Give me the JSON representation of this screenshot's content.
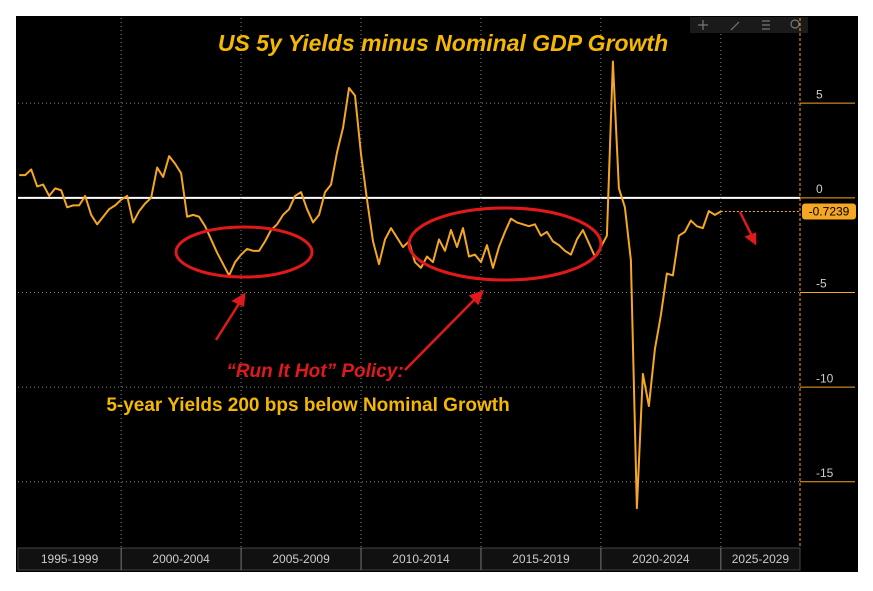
{
  "chart_data": {
    "type": "line",
    "title": "US 5y Yields minus Nominal GDP Growth",
    "annotations": [
      "“Run It Hot” Policy:",
      "5-year Yields 200 bps below Nominal Growth"
    ],
    "x": [
      1995.75,
      1996.0,
      1996.25,
      1996.5,
      1996.75,
      1997.0,
      1997.25,
      1997.5,
      1997.75,
      1998.0,
      1998.25,
      1998.5,
      1998.75,
      1999.0,
      1999.25,
      1999.5,
      1999.75,
      2000.0,
      2000.25,
      2000.5,
      2000.75,
      2001.0,
      2001.25,
      2001.5,
      2001.75,
      2002.0,
      2002.25,
      2002.5,
      2002.75,
      2003.0,
      2003.25,
      2003.5,
      2003.75,
      2004.0,
      2004.25,
      2004.5,
      2004.75,
      2005.0,
      2005.25,
      2005.5,
      2005.75,
      2006.0,
      2006.25,
      2006.5,
      2006.75,
      2007.0,
      2007.25,
      2007.5,
      2007.75,
      2008.0,
      2008.25,
      2008.5,
      2008.75,
      2009.0,
      2009.25,
      2009.5,
      2009.75,
      2010.0,
      2010.25,
      2010.5,
      2010.75,
      2011.0,
      2011.25,
      2011.5,
      2011.75,
      2012.0,
      2012.25,
      2012.5,
      2012.75,
      2013.0,
      2013.25,
      2013.5,
      2013.75,
      2014.0,
      2014.25,
      2014.5,
      2014.75,
      2015.0,
      2015.25,
      2015.5,
      2015.75,
      2016.0,
      2016.25,
      2016.5,
      2016.75,
      2017.0,
      2017.25,
      2017.5,
      2017.75,
      2018.0,
      2018.25,
      2018.5,
      2018.75,
      2019.0,
      2019.25,
      2019.5,
      2019.75,
      2020.0,
      2020.25,
      2020.5,
      2020.75,
      2021.0,
      2021.25,
      2021.5,
      2021.75,
      2022.0,
      2022.25,
      2022.5,
      2022.75,
      2023.0,
      2023.25,
      2023.5,
      2023.75,
      2024.0,
      2024.25,
      2024.5,
      2024.75,
      2025.0
    ],
    "series": [
      {
        "name": "US 5y Yields minus Nominal GDP Growth",
        "color": "#f5a623",
        "values": [
          1.2,
          1.2,
          1.5,
          0.6,
          0.7,
          0.1,
          0.5,
          0.4,
          -0.5,
          -0.4,
          -0.4,
          0.1,
          -0.9,
          -1.4,
          -1.0,
          -0.6,
          -0.4,
          -0.1,
          0.1,
          -1.3,
          -0.7,
          -0.3,
          0.0,
          1.6,
          1.1,
          2.2,
          1.8,
          1.3,
          -1.0,
          -0.9,
          -1.0,
          -1.5,
          -2.2,
          -2.9,
          -3.5,
          -4.1,
          -3.4,
          -3.0,
          -2.7,
          -2.8,
          -2.8,
          -2.3,
          -1.7,
          -1.4,
          -0.9,
          -0.6,
          0.1,
          0.3,
          -0.6,
          -1.3,
          -0.9,
          0.3,
          0.7,
          2.4,
          3.7,
          5.8,
          5.4,
          2.3,
          -0.1,
          -2.3,
          -3.5,
          -2.2,
          -1.6,
          -2.1,
          -2.6,
          -2.3,
          -3.4,
          -3.7,
          -3.1,
          -3.4,
          -2.2,
          -2.8,
          -1.7,
          -2.6,
          -1.6,
          -3.1,
          -3.0,
          -3.4,
          -2.5,
          -3.7,
          -2.6,
          -1.8,
          -1.1,
          -1.3,
          -1.4,
          -1.5,
          -1.4,
          -2.0,
          -1.8,
          -2.3,
          -2.5,
          -2.8,
          -3.0,
          -2.2,
          -1.7,
          -2.4,
          -3.1,
          -2.6,
          -2.0,
          7.2,
          0.5,
          -0.5,
          -3.3,
          -16.4,
          -9.3,
          -11.0,
          -8.0,
          -6.2,
          -4.0,
          -4.1,
          -2.0,
          -1.8,
          -1.2,
          -1.5,
          -1.6,
          -0.7,
          -0.9,
          -0.7239
        ]
      }
    ],
    "xlim": [
      1995.7,
      2028.3
    ],
    "xticks": [
      {
        "value": 1995,
        "label": "1995-1999"
      },
      {
        "value": 2000,
        "label": "2000-2004"
      },
      {
        "value": 2005,
        "label": "2005-2009"
      },
      {
        "value": 2010,
        "label": "2010-2014"
      },
      {
        "value": 2015,
        "label": "2015-2019"
      },
      {
        "value": 2020,
        "label": "2020-2024"
      },
      {
        "value": 2025,
        "label": "2025-2029"
      }
    ],
    "ylim": [
      -18.5,
      9.5
    ],
    "yticks": [
      5,
      0,
      -5,
      -10,
      -15
    ],
    "grid": true
  }
}
